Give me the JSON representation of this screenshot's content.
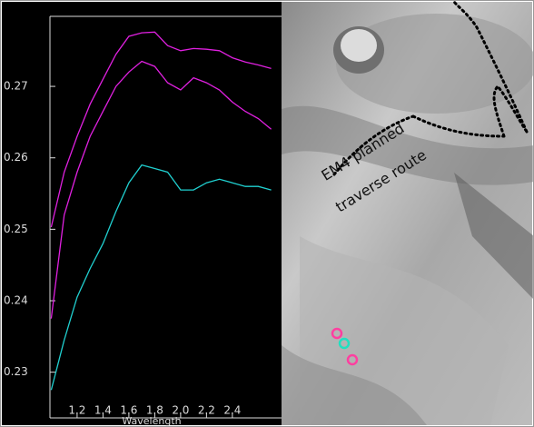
{
  "chart_data": {
    "type": "line",
    "x": [
      1.0,
      1.1,
      1.2,
      1.3,
      1.4,
      1.5,
      1.6,
      1.7,
      1.8,
      1.9,
      2.0,
      2.1,
      2.2,
      2.3,
      2.4,
      2.5,
      2.6,
      2.7
    ],
    "series": [
      {
        "color": "#e020e0",
        "values": [
          0.2503,
          0.258,
          0.263,
          0.2675,
          0.271,
          0.2745,
          0.277,
          0.2775,
          0.2776,
          0.2757,
          0.275,
          0.2753,
          0.2752,
          0.275,
          0.274,
          0.2734,
          0.273,
          0.2725
        ]
      },
      {
        "color": "#e020e0",
        "values": [
          0.2375,
          0.252,
          0.258,
          0.263,
          0.2665,
          0.27,
          0.272,
          0.2735,
          0.2728,
          0.2705,
          0.2695,
          0.2712,
          0.2705,
          0.2695,
          0.2678,
          0.2665,
          0.2655,
          0.264
        ]
      },
      {
        "color": "#20d0d0",
        "values": [
          0.2275,
          0.2345,
          0.2405,
          0.2445,
          0.248,
          0.2525,
          0.2565,
          0.259,
          0.2585,
          0.258,
          0.2555,
          0.2555,
          0.2565,
          0.257,
          0.2565,
          0.256,
          0.256,
          0.2555
        ]
      }
    ],
    "xlabel": "Wavelength",
    "xlim": [
      0.99,
      2.78
    ],
    "xticks": [
      1.2,
      1.4,
      1.6,
      1.8,
      {
        "value": 2.0,
        "label": "2.0"
      },
      2.2,
      2.4
    ],
    "ylim": [
      0.2236,
      0.2798
    ],
    "yticks": [
      0.23,
      0.24,
      0.25,
      0.26,
      0.27
    ],
    "annotations": [
      "EM4 planned",
      "traverse route"
    ]
  }
}
